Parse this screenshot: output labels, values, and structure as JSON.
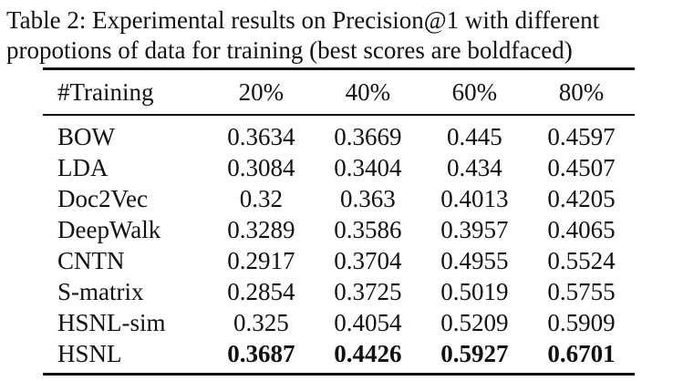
{
  "caption": {
    "line1": "Table 2: Experimental results on Precision@1 with different",
    "line2": "propotions of data for training (best scores are boldfaced)"
  },
  "table": {
    "header": [
      "#Training",
      "20%",
      "40%",
      "60%",
      "80%"
    ],
    "rows": [
      {
        "label": "BOW",
        "values": [
          "0.3634",
          "0.3669",
          "0.445",
          "0.4597"
        ]
      },
      {
        "label": "LDA",
        "values": [
          "0.3084",
          "0.3404",
          "0.434",
          "0.4507"
        ]
      },
      {
        "label": "Doc2Vec",
        "values": [
          "0.32",
          "0.363",
          "0.4013",
          "0.4205"
        ]
      },
      {
        "label": "DeepWalk",
        "values": [
          "0.3289",
          "0.3586",
          "0.3957",
          "0.4065"
        ]
      },
      {
        "label": "CNTN",
        "values": [
          "0.2917",
          "0.3704",
          "0.4955",
          "0.5524"
        ]
      },
      {
        "label": "S-matrix",
        "values": [
          "0.2854",
          "0.3725",
          "0.5019",
          "0.5755"
        ]
      },
      {
        "label": "HSNL-sim",
        "values": [
          "0.325",
          "0.4054",
          "0.5209",
          "0.5909"
        ]
      },
      {
        "label": "HSNL",
        "values": [
          "0.3687",
          "0.4426",
          "0.5927",
          "0.6701"
        ]
      }
    ],
    "bold_row": "HSNL"
  }
}
